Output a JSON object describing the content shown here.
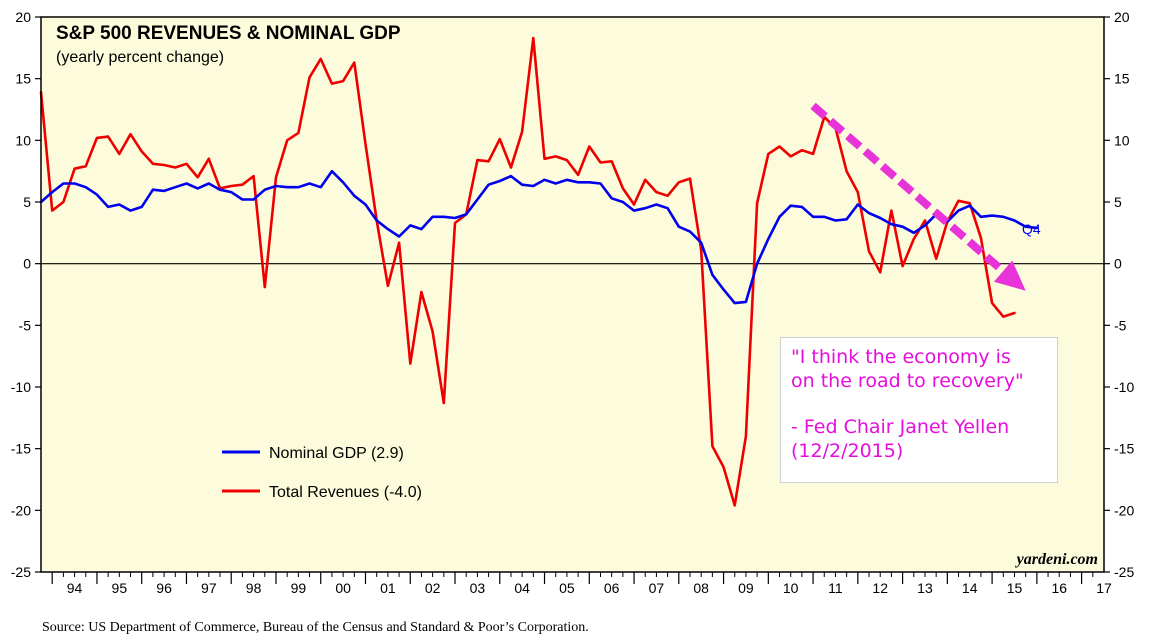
{
  "chart_data": {
    "type": "line",
    "title": "S&P 500 REVENUES & NOMINAL GDP",
    "subtitle": "(yearly percent change)",
    "watermark": "yardeni.com",
    "ylim": [
      -25,
      20
    ],
    "y_ticks": [
      20,
      15,
      10,
      5,
      0,
      -5,
      -10,
      -15,
      -20,
      -25
    ],
    "x_year_labels": [
      "94",
      "95",
      "96",
      "97",
      "98",
      "99",
      "00",
      "01",
      "02",
      "03",
      "04",
      "05",
      "06",
      "07",
      "08",
      "09",
      "10",
      "11",
      "12",
      "13",
      "14",
      "15",
      "16",
      "17"
    ],
    "x_start": 1993.75,
    "x_end": 2017.5,
    "grid": false,
    "zero_line": true,
    "legend_position": "lower-left",
    "series": [
      {
        "name": "Nominal GDP (2.9)",
        "color": "#0000ee",
        "end_label": "Q4",
        "points": [
          [
            1993.75,
            5.0
          ],
          [
            1994.0,
            5.8
          ],
          [
            1994.25,
            6.5
          ],
          [
            1994.5,
            6.5
          ],
          [
            1994.75,
            6.2
          ],
          [
            1995.0,
            5.6
          ],
          [
            1995.25,
            4.6
          ],
          [
            1995.5,
            4.8
          ],
          [
            1995.75,
            4.3
          ],
          [
            1996.0,
            4.6
          ],
          [
            1996.25,
            6.0
          ],
          [
            1996.5,
            5.9
          ],
          [
            1996.75,
            6.2
          ],
          [
            1997.0,
            6.5
          ],
          [
            1997.25,
            6.1
          ],
          [
            1997.5,
            6.5
          ],
          [
            1997.75,
            6.0
          ],
          [
            1998.0,
            5.8
          ],
          [
            1998.25,
            5.2
          ],
          [
            1998.5,
            5.2
          ],
          [
            1998.75,
            6.0
          ],
          [
            1999.0,
            6.3
          ],
          [
            1999.25,
            6.2
          ],
          [
            1999.5,
            6.2
          ],
          [
            1999.75,
            6.5
          ],
          [
            2000.0,
            6.2
          ],
          [
            2000.25,
            7.5
          ],
          [
            2000.5,
            6.6
          ],
          [
            2000.75,
            5.5
          ],
          [
            2001.0,
            4.8
          ],
          [
            2001.25,
            3.5
          ],
          [
            2001.5,
            2.8
          ],
          [
            2001.75,
            2.2
          ],
          [
            2002.0,
            3.1
          ],
          [
            2002.25,
            2.8
          ],
          [
            2002.5,
            3.8
          ],
          [
            2002.75,
            3.8
          ],
          [
            2003.0,
            3.7
          ],
          [
            2003.25,
            4.0
          ],
          [
            2003.5,
            5.2
          ],
          [
            2003.75,
            6.4
          ],
          [
            2004.0,
            6.7
          ],
          [
            2004.25,
            7.1
          ],
          [
            2004.5,
            6.4
          ],
          [
            2004.75,
            6.3
          ],
          [
            2005.0,
            6.8
          ],
          [
            2005.25,
            6.5
          ],
          [
            2005.5,
            6.8
          ],
          [
            2005.75,
            6.6
          ],
          [
            2006.0,
            6.6
          ],
          [
            2006.25,
            6.5
          ],
          [
            2006.5,
            5.3
          ],
          [
            2006.75,
            5.0
          ],
          [
            2007.0,
            4.3
          ],
          [
            2007.25,
            4.5
          ],
          [
            2007.5,
            4.8
          ],
          [
            2007.75,
            4.5
          ],
          [
            2008.0,
            3.0
          ],
          [
            2008.25,
            2.6
          ],
          [
            2008.5,
            1.7
          ],
          [
            2008.75,
            -0.9
          ],
          [
            2009.0,
            -2.1
          ],
          [
            2009.25,
            -3.2
          ],
          [
            2009.5,
            -3.1
          ],
          [
            2009.75,
            0.0
          ],
          [
            2010.0,
            2.0
          ],
          [
            2010.25,
            3.8
          ],
          [
            2010.5,
            4.7
          ],
          [
            2010.75,
            4.6
          ],
          [
            2011.0,
            3.8
          ],
          [
            2011.25,
            3.8
          ],
          [
            2011.5,
            3.5
          ],
          [
            2011.75,
            3.6
          ],
          [
            2012.0,
            4.8
          ],
          [
            2012.25,
            4.1
          ],
          [
            2012.5,
            3.7
          ],
          [
            2012.75,
            3.2
          ],
          [
            2013.0,
            3.0
          ],
          [
            2013.25,
            2.5
          ],
          [
            2013.5,
            3.1
          ],
          [
            2013.75,
            4.0
          ],
          [
            2014.0,
            3.4
          ],
          [
            2014.25,
            4.3
          ],
          [
            2014.5,
            4.7
          ],
          [
            2014.75,
            3.8
          ],
          [
            2015.0,
            3.9
          ],
          [
            2015.25,
            3.8
          ],
          [
            2015.5,
            3.5
          ],
          [
            2015.75,
            3.0
          ],
          [
            2016.0,
            2.9
          ]
        ]
      },
      {
        "name": "Total Revenues (-4.0)",
        "color": "#ee0000",
        "points": [
          [
            1993.75,
            13.9
          ],
          [
            1994.0,
            4.3
          ],
          [
            1994.25,
            5.0
          ],
          [
            1994.5,
            7.7
          ],
          [
            1994.75,
            7.9
          ],
          [
            1995.0,
            10.2
          ],
          [
            1995.25,
            10.3
          ],
          [
            1995.5,
            8.9
          ],
          [
            1995.75,
            10.5
          ],
          [
            1996.0,
            9.1
          ],
          [
            1996.25,
            8.1
          ],
          [
            1996.5,
            8.0
          ],
          [
            1996.75,
            7.8
          ],
          [
            1997.0,
            8.1
          ],
          [
            1997.25,
            7.0
          ],
          [
            1997.5,
            8.5
          ],
          [
            1997.75,
            6.1
          ],
          [
            1998.0,
            6.3
          ],
          [
            1998.25,
            6.4
          ],
          [
            1998.5,
            7.1
          ],
          [
            1998.75,
            -1.9
          ],
          [
            1999.0,
            7.0
          ],
          [
            1999.25,
            10.0
          ],
          [
            1999.5,
            10.6
          ],
          [
            1999.75,
            15.1
          ],
          [
            2000.0,
            16.6
          ],
          [
            2000.25,
            14.6
          ],
          [
            2000.5,
            14.8
          ],
          [
            2000.75,
            16.3
          ],
          [
            2001.0,
            9.7
          ],
          [
            2001.25,
            3.5
          ],
          [
            2001.5,
            -1.8
          ],
          [
            2001.75,
            1.7
          ],
          [
            2002.0,
            -8.1
          ],
          [
            2002.25,
            -2.3
          ],
          [
            2002.5,
            -5.5
          ],
          [
            2002.75,
            -11.3
          ],
          [
            2003.0,
            3.3
          ],
          [
            2003.25,
            4.0
          ],
          [
            2003.5,
            8.4
          ],
          [
            2003.75,
            8.3
          ],
          [
            2004.0,
            10.1
          ],
          [
            2004.25,
            7.8
          ],
          [
            2004.5,
            10.7
          ],
          [
            2004.75,
            18.3
          ],
          [
            2005.0,
            8.5
          ],
          [
            2005.25,
            8.7
          ],
          [
            2005.5,
            8.4
          ],
          [
            2005.75,
            7.2
          ],
          [
            2006.0,
            9.5
          ],
          [
            2006.25,
            8.2
          ],
          [
            2006.5,
            8.3
          ],
          [
            2006.75,
            6.1
          ],
          [
            2007.0,
            4.8
          ],
          [
            2007.25,
            6.8
          ],
          [
            2007.5,
            5.8
          ],
          [
            2007.75,
            5.5
          ],
          [
            2008.0,
            6.6
          ],
          [
            2008.25,
            6.9
          ],
          [
            2008.5,
            1.1
          ],
          [
            2008.75,
            -14.8
          ],
          [
            2009.0,
            -16.5
          ],
          [
            2009.25,
            -19.6
          ],
          [
            2009.5,
            -14.0
          ],
          [
            2009.75,
            4.9
          ],
          [
            2010.0,
            8.9
          ],
          [
            2010.25,
            9.5
          ],
          [
            2010.5,
            8.7
          ],
          [
            2010.75,
            9.2
          ],
          [
            2011.0,
            8.9
          ],
          [
            2011.25,
            11.9
          ],
          [
            2011.5,
            11.0
          ],
          [
            2011.75,
            7.5
          ],
          [
            2012.0,
            5.8
          ],
          [
            2012.25,
            1.0
          ],
          [
            2012.5,
            -0.7
          ],
          [
            2012.75,
            4.3
          ],
          [
            2013.0,
            -0.2
          ],
          [
            2013.25,
            2.0
          ],
          [
            2013.5,
            3.5
          ],
          [
            2013.75,
            0.4
          ],
          [
            2014.0,
            3.4
          ],
          [
            2014.25,
            5.1
          ],
          [
            2014.5,
            4.9
          ],
          [
            2014.75,
            2.1
          ],
          [
            2015.0,
            -3.2
          ],
          [
            2015.25,
            -4.3
          ],
          [
            2015.5,
            -4.0
          ]
        ]
      }
    ],
    "annotation_arrow": {
      "color": "#e733d8",
      "from": [
        2011.0,
        12.8
      ],
      "to": [
        2015.75,
        -2.2
      ]
    }
  },
  "annotation": {
    "quote_line1": "\"I think the economy is",
    "quote_line2": "on the road to recovery\"",
    "attribution_line1": "- Fed Chair Janet Yellen",
    "attribution_line2": "(12/2/2015)",
    "color": "#e60ddd"
  },
  "source": "Source: US Department of Commerce, Bureau of the Census and Standard & Poor’s Corporation.",
  "colors": {
    "plot_background": "#fcfcdc",
    "frame": "#000000"
  }
}
